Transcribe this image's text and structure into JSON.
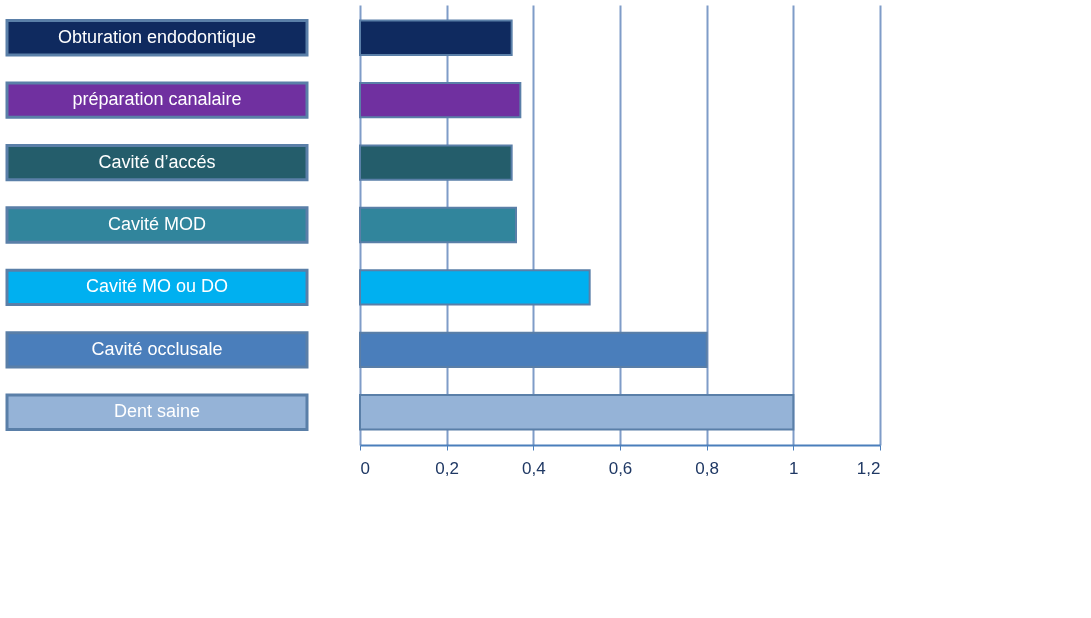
{
  "chart_data": {
    "type": "bar",
    "orientation": "horizontal",
    "categories": [
      "Obturation endodontique",
      "préparation canalaire",
      "Cavité d’accés",
      "Cavité MOD",
      "Cavité  MO ou DO",
      "Cavité occlusale",
      "Dent  saine"
    ],
    "values": [
      0.35,
      0.37,
      0.35,
      0.36,
      0.53,
      0.8,
      1.0
    ],
    "colors": [
      "#0f2a5f",
      "#7030a0",
      "#245d6b",
      "#31859c",
      "#00b0f0",
      "#4a7ebb",
      "#95b3d7"
    ],
    "xlim": [
      0,
      1.2
    ],
    "xticks": [
      0,
      {
        "value": 0.2,
        "label": "0,2"
      },
      {
        "value": 0.4,
        "label": "0,4"
      },
      {
        "value": 0.6,
        "label": "0,6"
      },
      {
        "value": 0.8,
        "label": "0,8"
      },
      1,
      {
        "value": 1.2,
        "label": "1,2"
      }
    ],
    "grid": "x"
  }
}
